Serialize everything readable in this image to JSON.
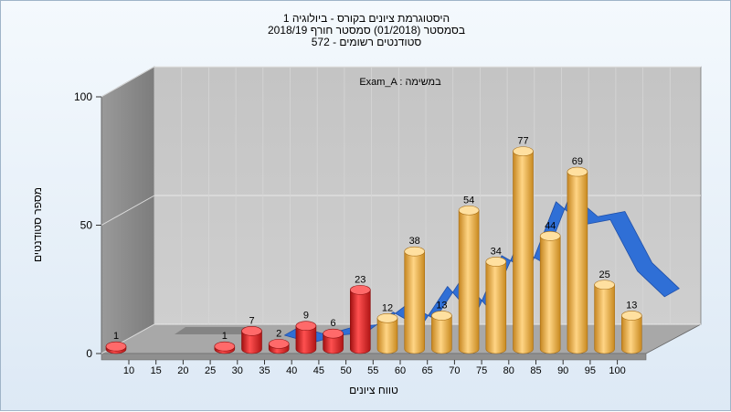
{
  "chart_data": {
    "type": "bar",
    "title_lines": [
      "היסטוגרמת ציונים בקורס - ביולוגיה 1",
      "בסמסטר  (01/2018)  סמסטר חורף 2018/19",
      "572 - סטודנטים רשומים"
    ],
    "xlabel": "טווח ציונים",
    "ylabel": "מספר סטודנטים",
    "legend": "Exam_A : במשימה",
    "ylim": [
      0,
      100
    ],
    "yticks": [
      "0",
      "50",
      "100"
    ],
    "xticks": [
      "10",
      "15",
      "20",
      "25",
      "30",
      "35",
      "40",
      "45",
      "50",
      "55",
      "60",
      "65",
      "70",
      "75",
      "80",
      "85",
      "90",
      "95",
      "100"
    ],
    "grid": true,
    "bars": [
      {
        "x": "10",
        "value": 1,
        "label": "1",
        "color": "#e23333"
      },
      {
        "x": "30",
        "value": 1,
        "label": "1",
        "color": "#e23333"
      },
      {
        "x": "35",
        "value": 7,
        "label": "7",
        "color": "#e23333"
      },
      {
        "x": "40",
        "value": 2,
        "label": "2",
        "color": "#e23333"
      },
      {
        "x": "45",
        "value": 9,
        "label": "9",
        "color": "#e23333"
      },
      {
        "x": "50",
        "value": 6,
        "label": "6",
        "color": "#e23333"
      },
      {
        "x": "55",
        "value": 23,
        "label": "23",
        "color": "#e23333"
      },
      {
        "x": "60",
        "value": 12,
        "label": "12",
        "color": "#f0b04a"
      },
      {
        "x": "65",
        "value": 38,
        "label": "38",
        "color": "#f0b04a"
      },
      {
        "x": "70",
        "value": 13,
        "label": "13",
        "color": "#f0b04a"
      },
      {
        "x": "75",
        "value": 54,
        "label": "54",
        "color": "#f0b04a"
      },
      {
        "x": "80",
        "value": 34,
        "label": "34",
        "color": "#f0b04a"
      },
      {
        "x": "85",
        "value": 77,
        "label": "77",
        "color": "#f0b04a"
      },
      {
        "x": "90",
        "value": 44,
        "label": "44",
        "color": "#f0b04a"
      },
      {
        "x": "95",
        "value": 69,
        "label": "69",
        "color": "#f0b04a"
      },
      {
        "x": "100",
        "value": 25,
        "label": "25",
        "color": "#f0b04a"
      },
      {
        "x": "105",
        "value": 13,
        "label": "13",
        "color": "#f0b04a"
      }
    ],
    "ribbon": {
      "x": [
        "35",
        "40",
        "45",
        "50",
        "55",
        "60",
        "65",
        "70",
        "75",
        "80",
        "85",
        "90",
        "95",
        "100",
        "105"
      ],
      "values": [
        5,
        2,
        5,
        6,
        14,
        8,
        24,
        12,
        36,
        30,
        57,
        48,
        50,
        30,
        20
      ]
    },
    "colors": {
      "fail": "#e23333",
      "pass": "#f0b04a",
      "ribbon": "#2f6fd6",
      "back_wall": "#c8c8c8",
      "side_wall": "#8a8a8a",
      "floor": "#a8a8a8"
    }
  }
}
